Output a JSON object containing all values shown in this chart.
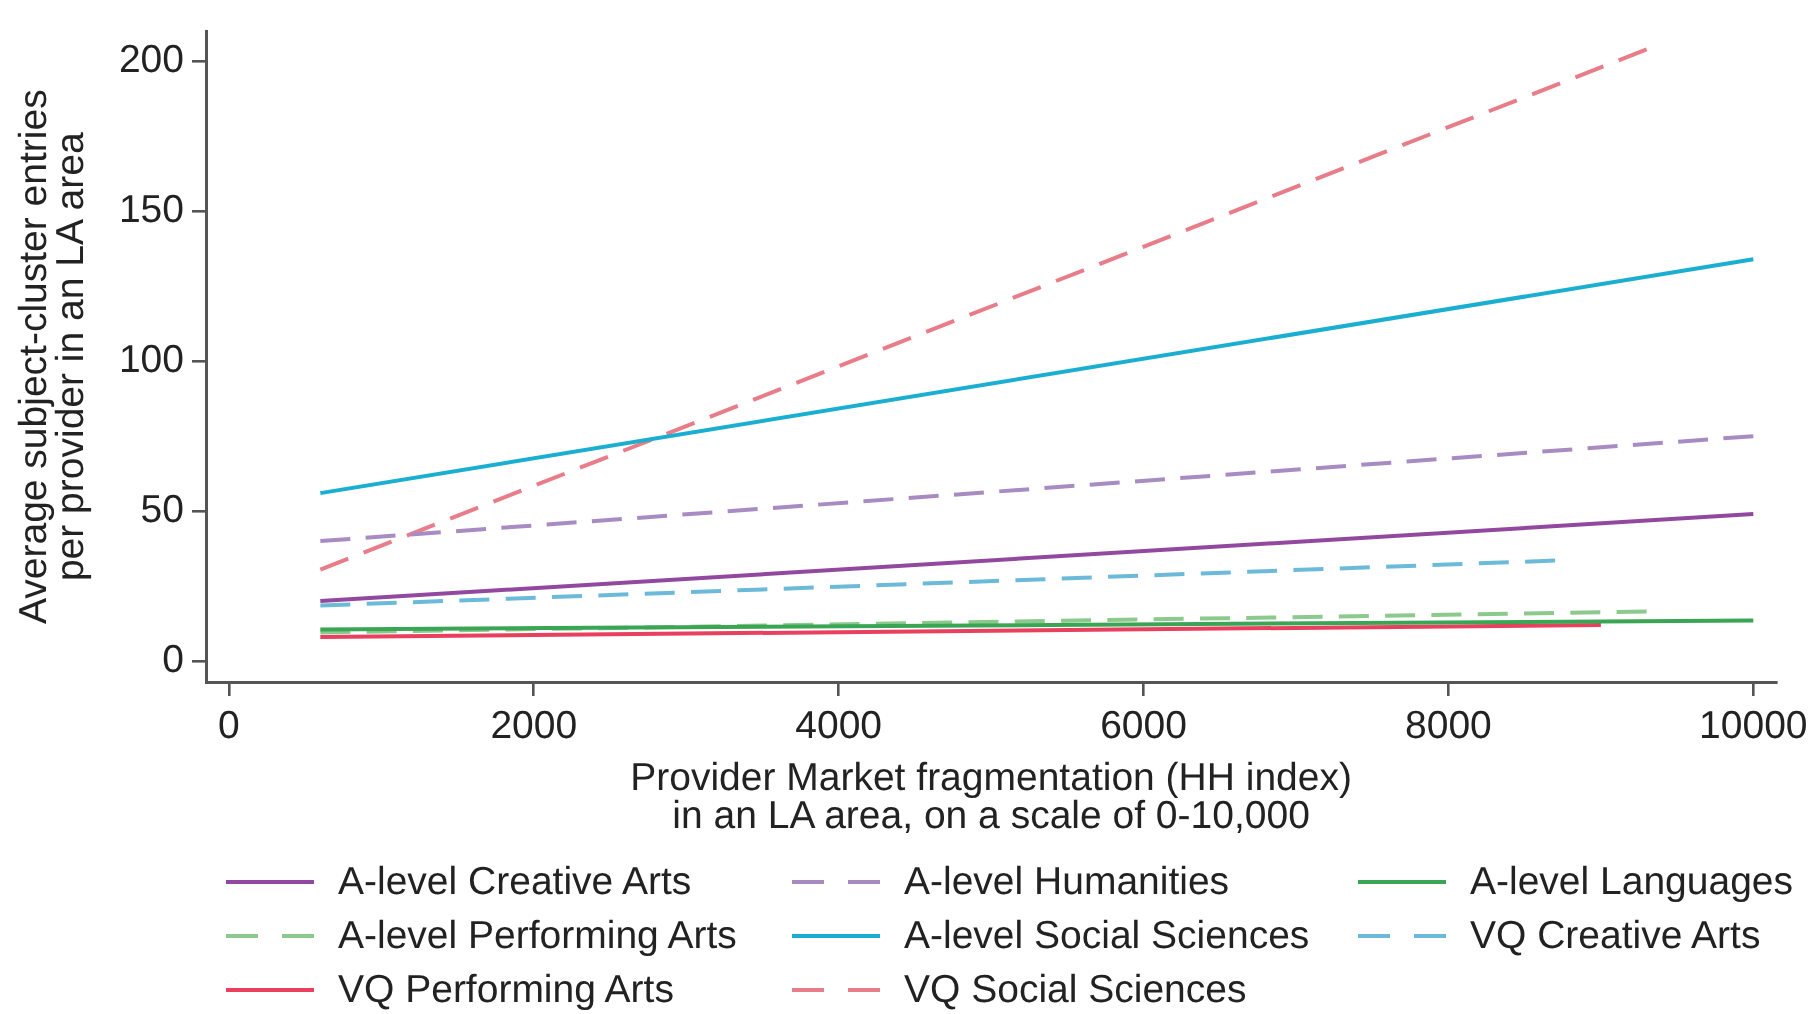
{
  "chart_data": {
    "type": "line",
    "xlabel": "Provider Market fragmentation (HH index)\nin an LA area, on a scale of 0-10,000",
    "ylabel": "Average subject-cluster entries\nper provider in an LA area",
    "xlim": [
      -150,
      10150
    ],
    "xticks": [
      0,
      2000,
      4000,
      6000,
      8000,
      10000
    ],
    "ylim": [
      -7,
      210
    ],
    "yticks": [
      0,
      50,
      100,
      150,
      200
    ],
    "grid": false,
    "legend": "bottom",
    "marker": "none",
    "series": [
      {
        "name": "A-level Creative Arts",
        "color": "#93489f",
        "line_style": "solid",
        "x": [
          600,
          10000
        ],
        "values": [
          20,
          49
        ]
      },
      {
        "name": "A-level Humanities",
        "color": "#a98bc3",
        "line_style": "dashed",
        "x": [
          600,
          10000
        ],
        "values": [
          40,
          75
        ]
      },
      {
        "name": "A-level Languages",
        "color": "#3aa655",
        "line_style": "solid",
        "x": [
          600,
          10000
        ],
        "values": [
          10.5,
          13.5
        ]
      },
      {
        "name": "A-level Performing Arts",
        "color": "#8cc98c",
        "line_style": "dashed",
        "x": [
          600,
          9300
        ],
        "values": [
          9.5,
          16.5
        ]
      },
      {
        "name": "A-level Social Sciences",
        "color": "#1aafd0",
        "line_style": "solid",
        "x": [
          600,
          10000
        ],
        "values": [
          56,
          134
        ]
      },
      {
        "name": "VQ Creative Arts",
        "color": "#6cbad9",
        "line_style": "dashed",
        "x": [
          600,
          8700
        ],
        "values": [
          18.5,
          33.5
        ]
      },
      {
        "name": "VQ Performing Arts",
        "color": "#e8405e",
        "line_style": "solid",
        "x": [
          600,
          9000
        ],
        "values": [
          8,
          12
        ]
      },
      {
        "name": "VQ Social Sciences",
        "color": "#e87c88",
        "line_style": "dashed",
        "x": [
          600,
          9300
        ],
        "values": [
          30.5,
          204
        ]
      }
    ]
  }
}
